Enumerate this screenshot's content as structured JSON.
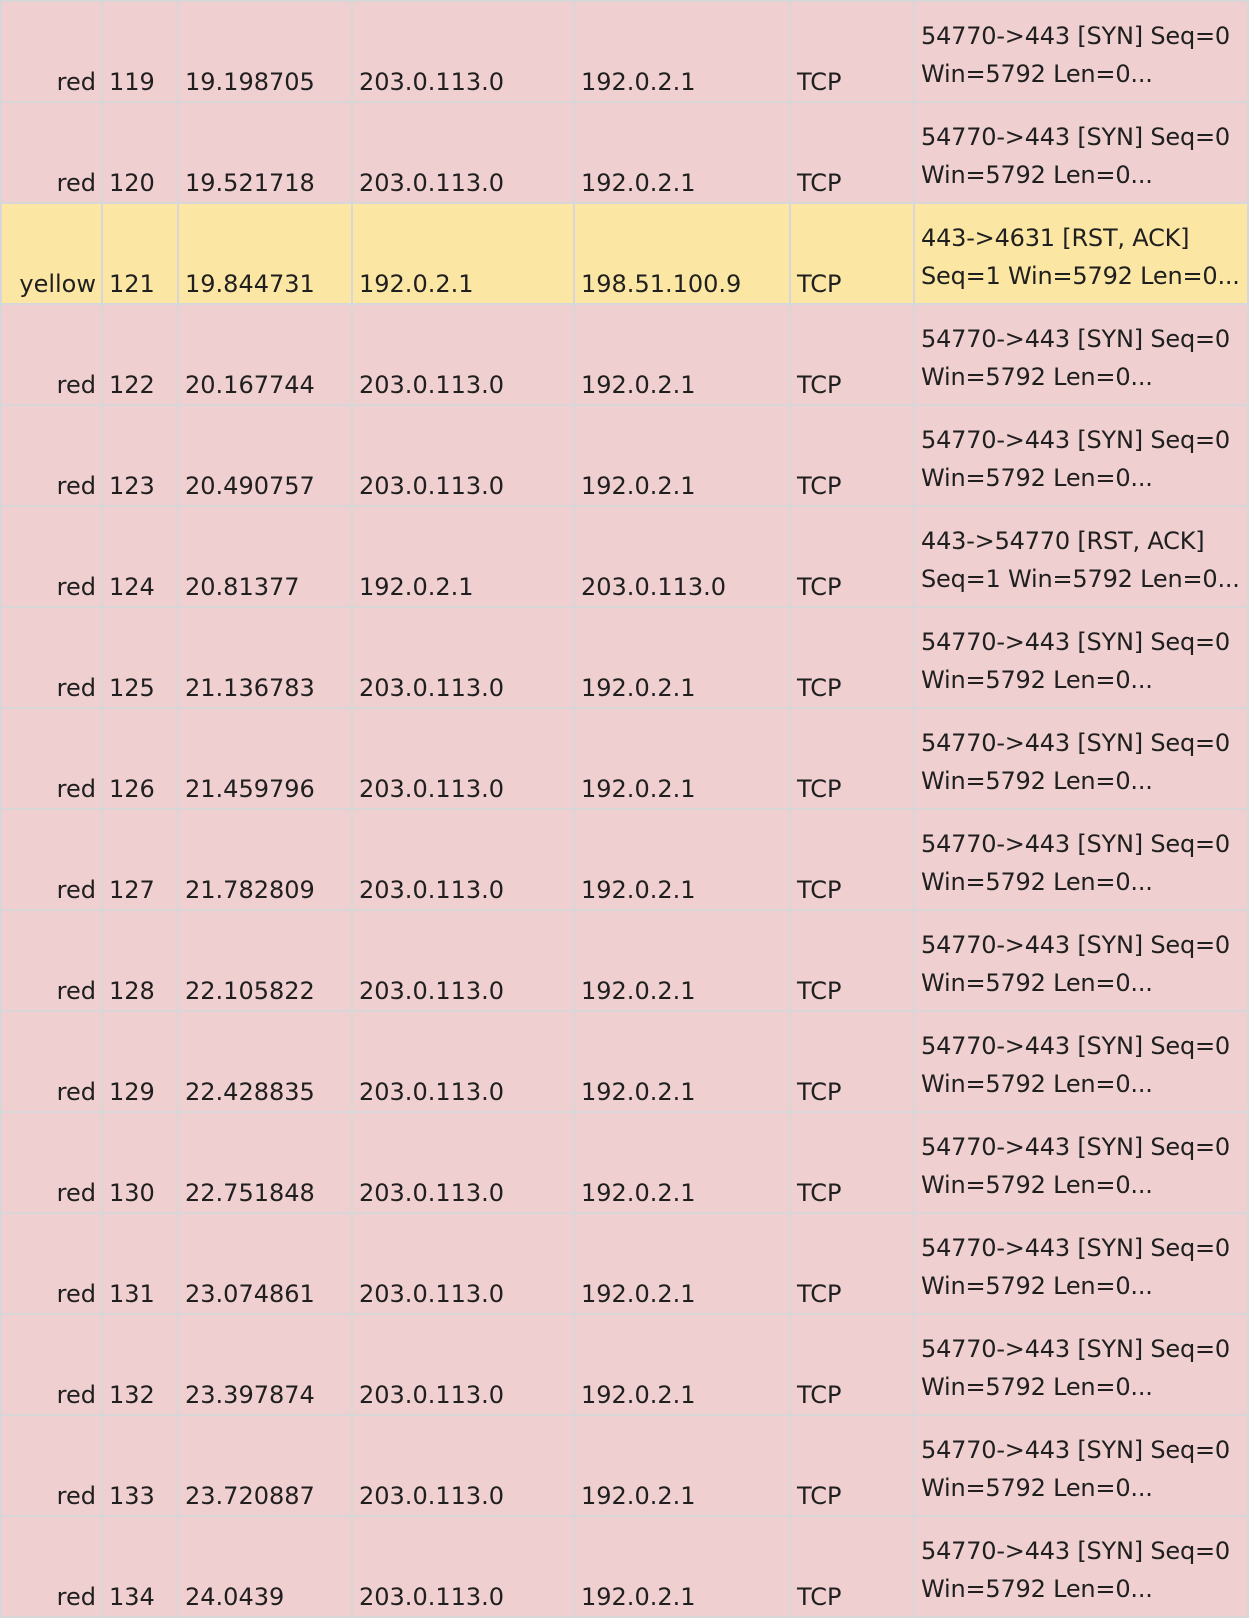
{
  "colors": {
    "red": "#efcfcf",
    "yellow": "#fbe6a3",
    "grid": "#d7d7d7",
    "text": "#1f1f1f"
  },
  "rows": [
    {
      "color": "red",
      "no": "119",
      "time": "19.198705",
      "source": "203.0.113.0",
      "destination": "192.0.2.1",
      "protocol": "TCP",
      "info_line1": "54770->443 [SYN] Seq=0",
      "info_line2": "Win=5792 Len=0..."
    },
    {
      "color": "red",
      "no": "120",
      "time": "19.521718",
      "source": "203.0.113.0",
      "destination": "192.0.2.1",
      "protocol": "TCP",
      "info_line1": "54770->443 [SYN] Seq=0",
      "info_line2": "Win=5792 Len=0..."
    },
    {
      "color": "yellow",
      "no": "121",
      "time": "19.844731",
      "source": "192.0.2.1",
      "destination": "198.51.100.9",
      "protocol": "TCP",
      "info_line1": "443->4631 [RST, ACK]",
      "info_line2": "Seq=1 Win=5792 Len=0..."
    },
    {
      "color": "red",
      "no": "122",
      "time": "20.167744",
      "source": "203.0.113.0",
      "destination": "192.0.2.1",
      "protocol": "TCP",
      "info_line1": "54770->443 [SYN] Seq=0",
      "info_line2": "Win=5792 Len=0..."
    },
    {
      "color": "red",
      "no": "123",
      "time": "20.490757",
      "source": "203.0.113.0",
      "destination": "192.0.2.1",
      "protocol": "TCP",
      "info_line1": "54770->443 [SYN] Seq=0",
      "info_line2": "Win=5792 Len=0..."
    },
    {
      "color": "red",
      "no": "124",
      "time": "20.81377",
      "source": "192.0.2.1",
      "destination": "203.0.113.0",
      "protocol": "TCP",
      "info_line1": "443->54770 [RST, ACK]",
      "info_line2": "Seq=1 Win=5792 Len=0..."
    },
    {
      "color": "red",
      "no": "125",
      "time": "21.136783",
      "source": "203.0.113.0",
      "destination": "192.0.2.1",
      "protocol": "TCP",
      "info_line1": "54770->443 [SYN] Seq=0",
      "info_line2": "Win=5792 Len=0..."
    },
    {
      "color": "red",
      "no": "126",
      "time": "21.459796",
      "source": "203.0.113.0",
      "destination": "192.0.2.1",
      "protocol": "TCP",
      "info_line1": "54770->443 [SYN] Seq=0",
      "info_line2": "Win=5792 Len=0..."
    },
    {
      "color": "red",
      "no": "127",
      "time": "21.782809",
      "source": "203.0.113.0",
      "destination": "192.0.2.1",
      "protocol": "TCP",
      "info_line1": "54770->443 [SYN] Seq=0",
      "info_line2": "Win=5792 Len=0..."
    },
    {
      "color": "red",
      "no": "128",
      "time": "22.105822",
      "source": "203.0.113.0",
      "destination": "192.0.2.1",
      "protocol": "TCP",
      "info_line1": "54770->443 [SYN] Seq=0",
      "info_line2": "Win=5792 Len=0..."
    },
    {
      "color": "red",
      "no": "129",
      "time": "22.428835",
      "source": "203.0.113.0",
      "destination": "192.0.2.1",
      "protocol": "TCP",
      "info_line1": "54770->443 [SYN] Seq=0",
      "info_line2": "Win=5792 Len=0..."
    },
    {
      "color": "red",
      "no": "130",
      "time": "22.751848",
      "source": "203.0.113.0",
      "destination": "192.0.2.1",
      "protocol": "TCP",
      "info_line1": "54770->443 [SYN] Seq=0",
      "info_line2": "Win=5792 Len=0..."
    },
    {
      "color": "red",
      "no": "131",
      "time": "23.074861",
      "source": "203.0.113.0",
      "destination": "192.0.2.1",
      "protocol": "TCP",
      "info_line1": "54770->443 [SYN] Seq=0",
      "info_line2": "Win=5792 Len=0..."
    },
    {
      "color": "red",
      "no": "132",
      "time": "23.397874",
      "source": "203.0.113.0",
      "destination": "192.0.2.1",
      "protocol": "TCP",
      "info_line1": "54770->443 [SYN] Seq=0",
      "info_line2": "Win=5792 Len=0..."
    },
    {
      "color": "red",
      "no": "133",
      "time": "23.720887",
      "source": "203.0.113.0",
      "destination": "192.0.2.1",
      "protocol": "TCP",
      "info_line1": "54770->443 [SYN] Seq=0",
      "info_line2": "Win=5792 Len=0..."
    },
    {
      "color": "red",
      "no": "134",
      "time": "24.0439",
      "source": "203.0.113.0",
      "destination": "192.0.2.1",
      "protocol": "TCP",
      "info_line1": "54770->443 [SYN] Seq=0",
      "info_line2": "Win=5792 Len=0..."
    }
  ]
}
